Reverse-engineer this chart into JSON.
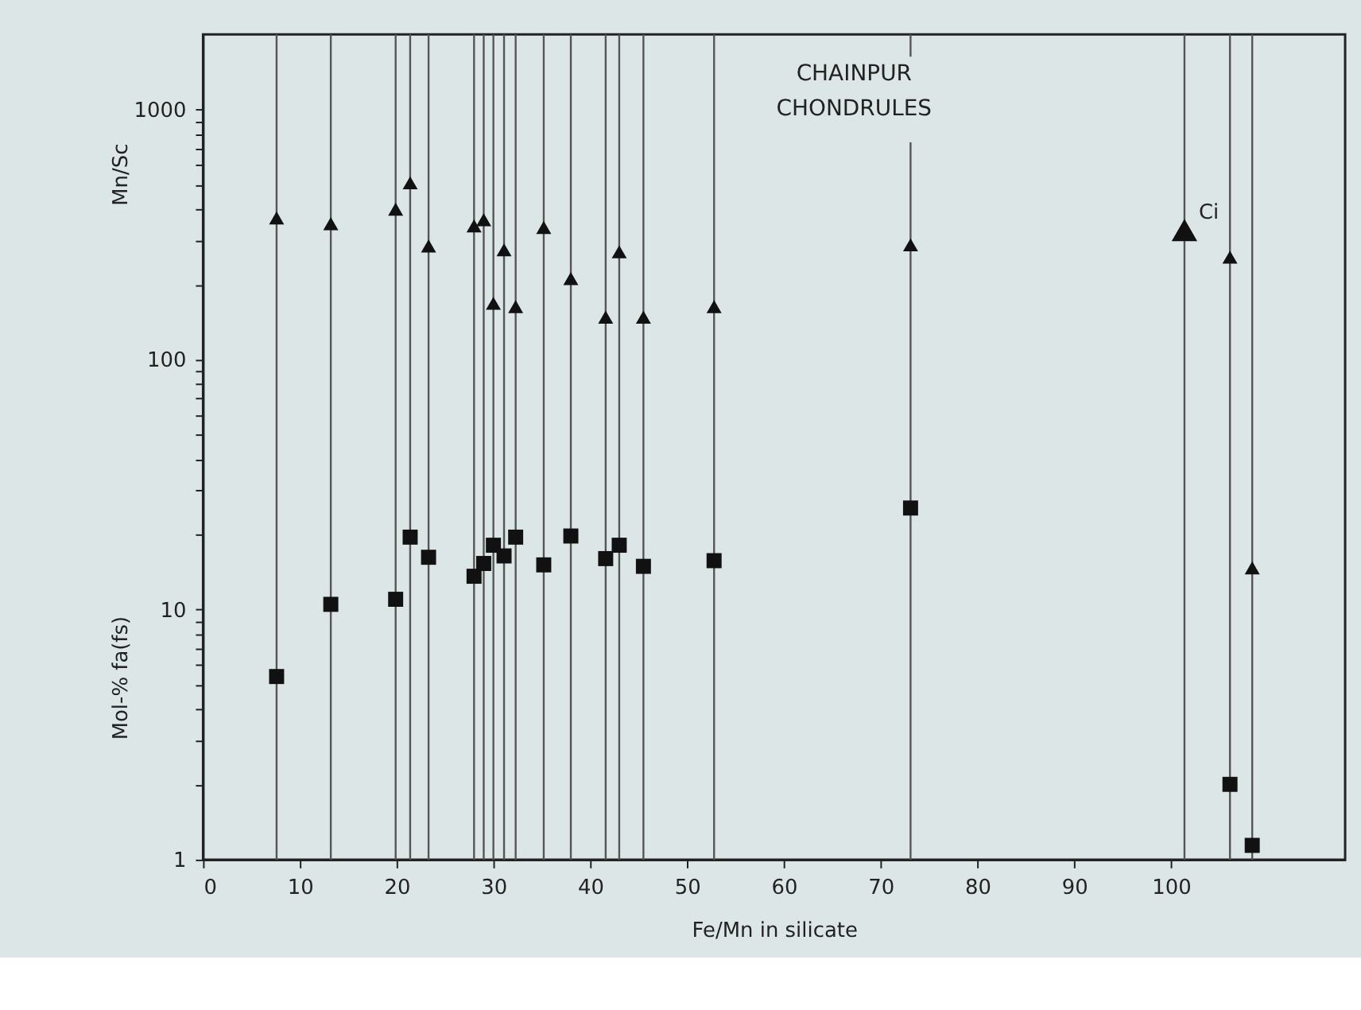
{
  "chart_data": {
    "type": "scatter",
    "title": "CHAINPUR CHONDRULES",
    "xlabel": "Fe/Mn in silicate",
    "ylabel": "Mn/Sc",
    "annotations": [
      "Mol-% fa(fs)",
      {
        "text": "Ci",
        "x": 101.4,
        "y": 330
      }
    ],
    "log": "y",
    "grid": false,
    "xlim": [
      0,
      118
    ],
    "xticks": [
      0,
      10,
      20,
      30,
      40,
      50,
      60,
      70,
      80,
      90,
      100
    ],
    "ylim": [
      1,
      2000
    ],
    "yticks": [
      1,
      {
        "value": 2,
        "label": null
      },
      {
        "value": 3,
        "label": null
      },
      {
        "value": 4,
        "label": null
      },
      {
        "value": 5,
        "label": null
      },
      {
        "value": 6,
        "label": null
      },
      {
        "value": 7,
        "label": null
      },
      {
        "value": 8,
        "label": null
      },
      {
        "value": 9,
        "label": null
      },
      10,
      {
        "value": 20,
        "label": null
      },
      {
        "value": 30,
        "label": null
      },
      {
        "value": 40,
        "label": null
      },
      {
        "value": 50,
        "label": null
      },
      {
        "value": 60,
        "label": null
      },
      {
        "value": 70,
        "label": null
      },
      {
        "value": 80,
        "label": null
      },
      {
        "value": 90,
        "label": null
      },
      100,
      {
        "value": 200,
        "label": null
      },
      {
        "value": 300,
        "label": null
      },
      {
        "value": 400,
        "label": null
      },
      {
        "value": 500,
        "label": null
      },
      {
        "value": 600,
        "label": null
      },
      {
        "value": 700,
        "label": null
      },
      {
        "value": 800,
        "label": null
      },
      {
        "value": 900,
        "label": null
      },
      1000
    ],
    "ref_lines": [
      {
        "axis": "x",
        "value": 7.6
      },
      {
        "axis": "x",
        "value": 13.2
      },
      {
        "axis": "x",
        "value": 19.9
      },
      {
        "axis": "x",
        "value": 21.4
      },
      {
        "axis": "x",
        "value": 23.3
      },
      {
        "axis": "x",
        "value": 28.0
      },
      {
        "axis": "x",
        "value": 29.0
      },
      {
        "axis": "x",
        "value": 30.0
      },
      {
        "axis": "x",
        "value": 31.1
      },
      {
        "axis": "x",
        "value": 32.3
      },
      {
        "axis": "x",
        "value": 35.2
      },
      {
        "axis": "x",
        "value": 38.0
      },
      {
        "axis": "x",
        "value": 41.6
      },
      {
        "axis": "x",
        "value": 43.0
      },
      {
        "axis": "x",
        "value": 45.5
      },
      {
        "axis": "x",
        "value": 52.8
      },
      {
        "axis": "x",
        "value": 73.1
      },
      {
        "axis": "x",
        "value": 101.4
      },
      {
        "axis": "x",
        "value": 106.1
      },
      {
        "axis": "x",
        "value": 108.4
      }
    ],
    "series": [
      {
        "marker": "triangle",
        "color": "#111111",
        "x": [
          7.6,
          13.2,
          19.9,
          21.4,
          23.3,
          28.0,
          29.0,
          30.0,
          31.1,
          32.3,
          35.2,
          38.0,
          41.6,
          43.0,
          45.5,
          52.8,
          73.1,
          106.1,
          108.4
        ],
        "values": [
          369,
          350,
          400,
          510,
          285,
          343,
          363,
          168,
          275,
          163,
          338,
          211,
          148,
          270,
          148,
          163,
          288,
          257,
          14.7
        ]
      },
      {
        "marker": "square",
        "color": "#111111",
        "x": [
          7.6,
          13.2,
          19.9,
          21.4,
          23.3,
          28.0,
          29.0,
          30.0,
          31.1,
          32.3,
          35.2,
          38.0,
          41.6,
          43.0,
          45.5,
          52.8,
          73.1,
          106.1,
          108.4
        ],
        "values": [
          5.4,
          10.5,
          11.0,
          19.5,
          16.2,
          13.6,
          15.3,
          18.1,
          16.4,
          19.5,
          15.1,
          19.7,
          16.0,
          18.1,
          14.9,
          15.7,
          25.5,
          2.0,
          1.14
        ]
      },
      {
        "marker": "triangle",
        "color": "#111111",
        "x": [
          101.4
        ],
        "values": [
          330
        ]
      }
    ]
  }
}
